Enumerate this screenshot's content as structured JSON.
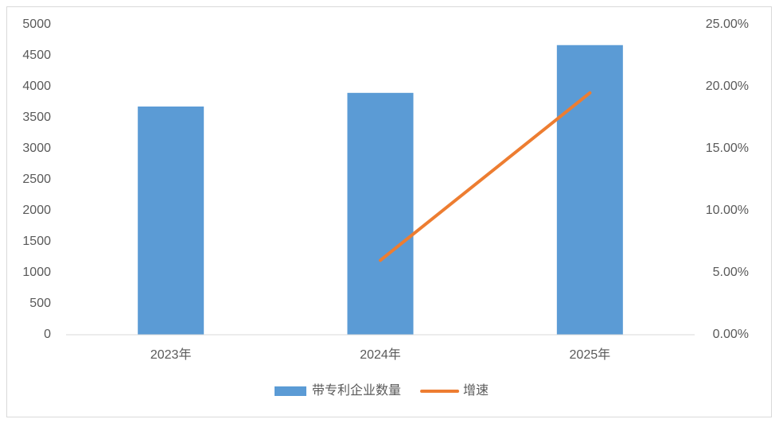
{
  "chart_data": {
    "type": "combo",
    "categories": [
      "2023年",
      "2024年",
      "2025年"
    ],
    "series": [
      {
        "name": "带专利企业数量",
        "type": "bar",
        "color": "#5b9bd5",
        "values": [
          3680,
          3900,
          4670
        ]
      },
      {
        "name": "增速",
        "type": "line",
        "axis": "y2",
        "color": "#ed7d31",
        "values": [
          null,
          6.0,
          19.5
        ]
      }
    ],
    "ylim": [
      0,
      5000
    ],
    "yticks": [
      0,
      500,
      1000,
      1500,
      2000,
      2500,
      3000,
      3500,
      4000,
      4500,
      5000
    ],
    "y2lim": [
      0,
      25
    ],
    "y2ticks": [
      {
        "value": 0,
        "label": "0.00%"
      },
      {
        "value": 5,
        "label": "5.00%"
      },
      {
        "value": 10,
        "label": "10.00%"
      },
      {
        "value": 15,
        "label": "15.00%"
      },
      {
        "value": 20,
        "label": "20.00%"
      },
      {
        "value": 25,
        "label": "25.00%"
      }
    ],
    "legend": "bottom"
  }
}
